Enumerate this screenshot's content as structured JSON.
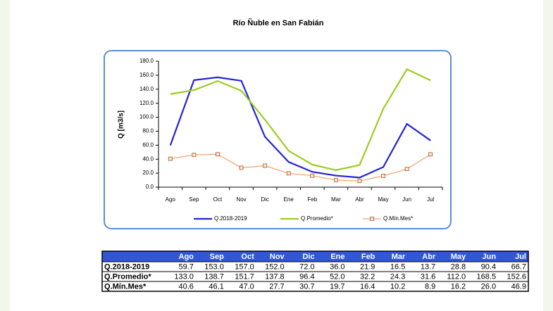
{
  "chart_data": {
    "type": "line",
    "title": "Río Ñuble en San Fabián",
    "y_label": "Q [m3/s]",
    "categories": [
      "Ago",
      "Sep",
      "Oct",
      "Nov",
      "Dic",
      "Ene",
      "Feb",
      "Mar",
      "Abr",
      "May",
      "Jun",
      "Jul"
    ],
    "series": [
      {
        "name": "Q.2018-2019",
        "color": "#2323d9",
        "marker": null,
        "values": [
          59.7,
          153,
          157,
          152,
          72,
          36,
          21.9,
          16.5,
          13.7,
          28.8,
          90.4,
          66.7
        ],
        "value_labels": [
          "59.7",
          "153.0",
          "157.0",
          "152.0",
          "72.0",
          "36.0",
          "21.9",
          "16.5",
          "13.7",
          "28.8",
          "90.4",
          "66.7"
        ]
      },
      {
        "name": "Q.Promedio*",
        "color": "#9acd1f",
        "marker": null,
        "values": [
          133,
          138.7,
          151.7,
          137.8,
          96.4,
          52,
          32.2,
          24.3,
          31.6,
          112,
          168.5,
          152.6
        ],
        "value_labels": [
          "133.0",
          "138.7",
          "151.7",
          "137.8",
          "96.4",
          "52.0",
          "32.2",
          "24.3",
          "31.6",
          "112.0",
          "168.5",
          "152.6"
        ]
      },
      {
        "name": "Q.Mín.Mes*",
        "color": "#f4a26a",
        "marker": "square",
        "values": [
          40.6,
          46.1,
          47,
          27.7,
          30.7,
          19.7,
          16.4,
          10.2,
          8.9,
          16.2,
          26,
          46.9
        ],
        "value_labels": [
          "40.6",
          "46.1",
          "47.0",
          "27.7",
          "30.7",
          "19.7",
          "16.4",
          "10.2",
          "8.9",
          "16.2",
          "26.0",
          "46.9"
        ]
      }
    ],
    "ylim": [
      0,
      180
    ],
    "yticks": [
      {
        "value": 0,
        "label": "0.0"
      },
      {
        "value": 20,
        "label": "20.0"
      },
      {
        "value": 40,
        "label": "40.0"
      },
      {
        "value": 60,
        "label": "60.0"
      },
      {
        "value": 80,
        "label": "80.0"
      },
      {
        "value": 100,
        "label": "100.0"
      },
      {
        "value": 120,
        "label": "120.0"
      },
      {
        "value": 140,
        "label": "140.0"
      },
      {
        "value": 160,
        "label": "160.0"
      },
      {
        "value": 180,
        "label": "180.0"
      }
    ],
    "grid": false,
    "legend": "bottom"
  }
}
